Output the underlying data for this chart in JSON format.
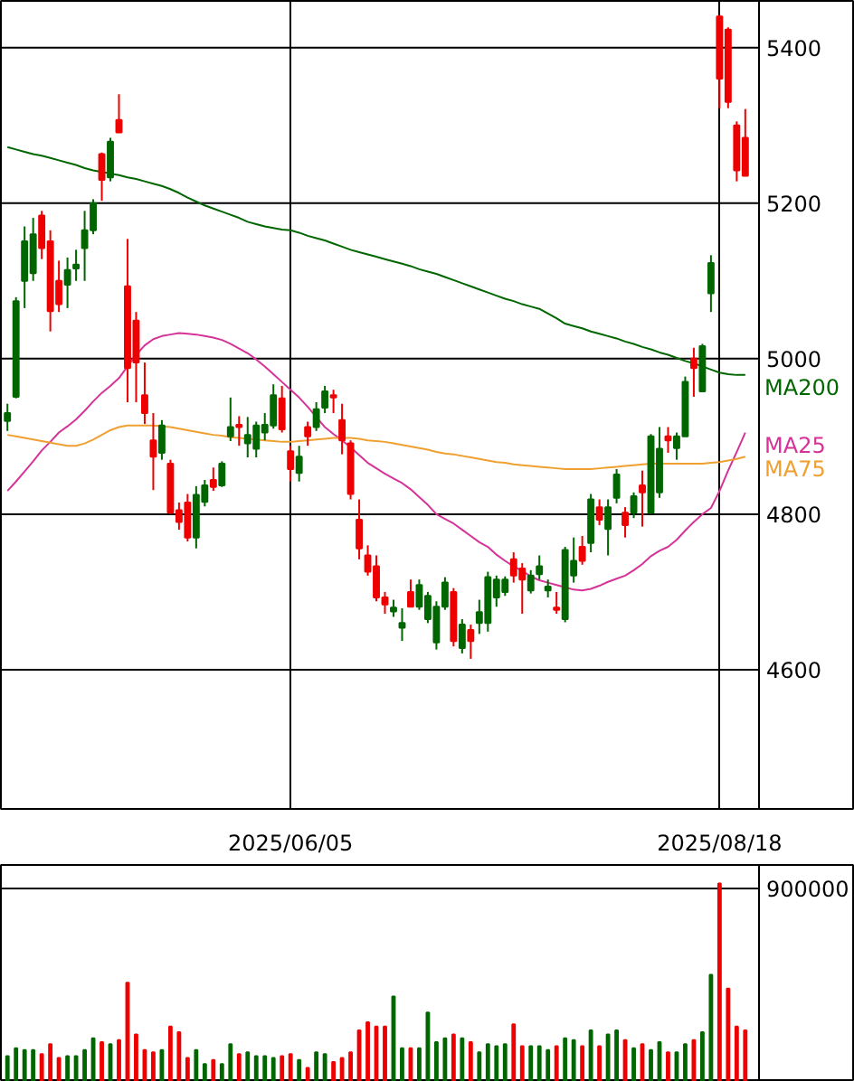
{
  "chart_data": [
    {
      "type": "candlestick",
      "categories": [
        null,
        null,
        null,
        null,
        null,
        null,
        null,
        null,
        null,
        null,
        null,
        null,
        null,
        null,
        null,
        null,
        null,
        null,
        null,
        null,
        null,
        null,
        null,
        null,
        null,
        null,
        null,
        null,
        null,
        null,
        null,
        null,
        null,
        "2025/06/05",
        null,
        null,
        null,
        null,
        null,
        null,
        null,
        null,
        null,
        null,
        null,
        null,
        null,
        null,
        null,
        null,
        null,
        null,
        null,
        null,
        null,
        null,
        null,
        null,
        null,
        null,
        null,
        null,
        null,
        null,
        null,
        null,
        null,
        null,
        null,
        null,
        null,
        null,
        null,
        null,
        null,
        null,
        null,
        null,
        null,
        null,
        null,
        null,
        null,
        "2025/08/18",
        null,
        null,
        null
      ],
      "ohlc": [
        [
          4920,
          4942,
          4907,
          4930
        ],
        [
          4951,
          5079,
          4949,
          5074
        ],
        [
          5100,
          5170,
          5065,
          5151
        ],
        [
          5110,
          5181,
          5100,
          5160
        ],
        [
          5184,
          5190,
          5128,
          5142
        ],
        [
          5151,
          5165,
          5035,
          5061
        ],
        [
          5100,
          5126,
          5060,
          5070
        ],
        [
          5095,
          5130,
          5065,
          5114
        ],
        [
          5116,
          5140,
          5100,
          5121
        ],
        [
          5142,
          5190,
          5100,
          5165
        ],
        [
          5165,
          5205,
          5160,
          5200
        ],
        [
          5263,
          5265,
          5203,
          5230
        ],
        [
          5233,
          5284,
          5228,
          5279
        ],
        [
          5307,
          5340,
          5291,
          5291
        ],
        [
          5093,
          5154,
          4944,
          4988
        ],
        [
          5049,
          5060,
          4944,
          4995
        ],
        [
          4953,
          4995,
          4916,
          4930
        ],
        [
          4895,
          4930,
          4831,
          4874
        ],
        [
          4879,
          4921,
          4870,
          4914
        ],
        [
          4865,
          4870,
          4800,
          4802
        ],
        [
          4805,
          4815,
          4780,
          4790
        ],
        [
          4815,
          4826,
          4765,
          4770
        ],
        [
          4770,
          4836,
          4756,
          4825
        ],
        [
          4816,
          4844,
          4810,
          4837
        ],
        [
          4844,
          4860,
          4830,
          4835
        ],
        [
          4837,
          4868,
          4835,
          4865
        ],
        [
          4900,
          4950,
          4894,
          4912
        ],
        [
          4915,
          4926,
          4888,
          4912
        ],
        [
          4891,
          4925,
          4873,
          4902
        ],
        [
          4884,
          4919,
          4873,
          4914
        ],
        [
          4905,
          4930,
          4895,
          4915
        ],
        [
          4914,
          4967,
          4910,
          4953
        ],
        [
          4949,
          4965,
          4905,
          4909
        ],
        [
          4881,
          4888,
          4842,
          4858
        ],
        [
          4853,
          4888,
          4842,
          4874
        ],
        [
          4912,
          4919,
          4888,
          4900
        ],
        [
          4912,
          4944,
          4907,
          4935
        ],
        [
          4937,
          4965,
          4930,
          4958
        ],
        [
          4953,
          4960,
          4930,
          4950
        ],
        [
          4921,
          4942,
          4877,
          4895
        ],
        [
          4891,
          4895,
          4819,
          4826
        ],
        [
          4793,
          4819,
          4742,
          4756
        ],
        [
          4747,
          4760,
          4721,
          4726
        ],
        [
          4733,
          4747,
          4688,
          4693
        ],
        [
          4693,
          4700,
          4672,
          4684
        ],
        [
          4675,
          4690,
          4668,
          4680
        ],
        [
          4654,
          4679,
          4637,
          4660
        ],
        [
          4700,
          4716,
          4681,
          4681
        ],
        [
          4681,
          4716,
          4677,
          4709
        ],
        [
          4665,
          4700,
          4660,
          4695
        ],
        [
          4635,
          4688,
          4626,
          4681
        ],
        [
          4681,
          4719,
          4677,
          4712
        ],
        [
          4700,
          4705,
          4630,
          4637
        ],
        [
          4628,
          4665,
          4621,
          4658
        ],
        [
          4651,
          4658,
          4614,
          4637
        ],
        [
          4660,
          4690,
          4646,
          4674
        ],
        [
          4660,
          4726,
          4649,
          4719
        ],
        [
          4693,
          4721,
          4681,
          4716
        ],
        [
          4700,
          4720,
          4695,
          4716
        ],
        [
          4742,
          4751,
          4712,
          4721
        ],
        [
          4730,
          4737,
          4672,
          4716
        ],
        [
          4702,
          4728,
          4698,
          4721
        ],
        [
          4723,
          4747,
          4716,
          4733
        ],
        [
          4702,
          4716,
          4693,
          4707
        ],
        [
          4680,
          4700,
          4672,
          4677
        ],
        [
          4665,
          4758,
          4661,
          4754
        ],
        [
          4721,
          4770,
          4712,
          4740
        ],
        [
          4758,
          4772,
          4735,
          4740
        ],
        [
          4763,
          4826,
          4751,
          4819
        ],
        [
          4809,
          4819,
          4786,
          4793
        ],
        [
          4781,
          4819,
          4747,
          4809
        ],
        [
          4821,
          4858,
          4814,
          4851
        ],
        [
          4802,
          4809,
          4770,
          4786
        ],
        [
          4802,
          4828,
          4795,
          4823
        ],
        [
          4837,
          4856,
          4784,
          4828
        ],
        [
          4802,
          4903,
          4800,
          4900
        ],
        [
          4828,
          4912,
          4821,
          4884
        ],
        [
          4900,
          4912,
          4879,
          4895
        ],
        [
          4885,
          4905,
          4870,
          4900
        ],
        [
          4900,
          4977,
          4900,
          4970
        ],
        [
          5000,
          5014,
          4951,
          4988
        ],
        [
          4958,
          5019,
          4958,
          5016
        ],
        [
          5084,
          5133,
          5060,
          5123
        ],
        [
          5440,
          5442,
          5322,
          5360
        ],
        [
          5423,
          5426,
          5322,
          5330
        ],
        [
          5300,
          5305,
          5228,
          5242
        ],
        [
          5284,
          5321,
          5235,
          5235
        ]
      ],
      "colors": [
        "#006600",
        "#006600",
        "#006600",
        "#006600",
        "#ee0000",
        "#ee0000",
        "#ee0000",
        "#006600",
        "#006600",
        "#006600",
        "#006600",
        "#ee0000",
        "#006600",
        "#ee0000",
        "#ee0000",
        "#ee0000",
        "#ee0000",
        "#ee0000",
        "#006600",
        "#ee0000",
        "#ee0000",
        "#ee0000",
        "#006600",
        "#006600",
        "#ee0000",
        "#006600",
        "#006600",
        "#ee0000",
        "#006600",
        "#006600",
        "#006600",
        "#006600",
        "#ee0000",
        "#ee0000",
        "#006600",
        "#ee0000",
        "#006600",
        "#006600",
        "#ee0000",
        "#ee0000",
        "#ee0000",
        "#ee0000",
        "#ee0000",
        "#ee0000",
        "#ee0000",
        "#006600",
        "#006600",
        "#ee0000",
        "#006600",
        "#006600",
        "#006600",
        "#006600",
        "#ee0000",
        "#006600",
        "#ee0000",
        "#006600",
        "#006600",
        "#006600",
        "#006600",
        "#ee0000",
        "#ee0000",
        "#006600",
        "#006600",
        "#006600",
        "#ee0000",
        "#006600",
        "#006600",
        "#ee0000",
        "#006600",
        "#ee0000",
        "#006600",
        "#006600",
        "#ee0000",
        "#006600",
        "#ee0000",
        "#006600",
        "#006600",
        "#ee0000",
        "#006600",
        "#006600",
        "#ee0000",
        "#006600",
        "#006600",
        "#ee0000",
        "#ee0000",
        "#ee0000",
        "#ee0000"
      ],
      "series": [
        {
          "name": "MA200",
          "type": "line",
          "color": "#006600",
          "values": [
            5272,
            5269,
            5266,
            5263,
            5261,
            5258,
            5255,
            5252,
            5249,
            5245,
            5242,
            5240,
            5238,
            5236,
            5233,
            5231,
            5228,
            5225,
            5222,
            5218,
            5213,
            5207,
            5202,
            5197,
            5193,
            5189,
            5185,
            5181,
            5176,
            5173,
            5170,
            5168,
            5166,
            5165,
            5162,
            5158,
            5155,
            5152,
            5148,
            5144,
            5140,
            5137,
            5134,
            5131,
            5128,
            5125,
            5122,
            5119,
            5115,
            5112,
            5109,
            5105,
            5101,
            5097,
            5093,
            5089,
            5085,
            5081,
            5077,
            5074,
            5070,
            5067,
            5064,
            5058,
            5052,
            5045,
            5042,
            5039,
            5035,
            5032,
            5029,
            5026,
            5022,
            5019,
            5015,
            5012,
            5008,
            5005,
            5001,
            4997,
            4994,
            4990,
            4986,
            4982,
            4980,
            4979,
            4979
          ]
        },
        {
          "name": "MA25",
          "type": "line",
          "color": "#d63399",
          "values": [
            4830,
            4842,
            4855,
            4868,
            4882,
            4893,
            4905,
            4913,
            4922,
            4933,
            4945,
            4956,
            4965,
            4975,
            4990,
            5005,
            5017,
            5025,
            5029,
            5031,
            5033,
            5032,
            5031,
            5029,
            5027,
            5024,
            5019,
            5013,
            5007,
            4999,
            4990,
            4980,
            4970,
            4960,
            4950,
            4938,
            4925,
            4912,
            4903,
            4895,
            4886,
            4876,
            4866,
            4859,
            4852,
            4846,
            4840,
            4832,
            4822,
            4812,
            4800,
            4794,
            4788,
            4780,
            4772,
            4764,
            4758,
            4748,
            4740,
            4733,
            4727,
            4720,
            4715,
            4712,
            4709,
            4706,
            4703,
            4702,
            4704,
            4708,
            4713,
            4717,
            4721,
            4728,
            4736,
            4746,
            4753,
            4758,
            4767,
            4779,
            4790,
            4800,
            4808,
            4830,
            4856,
            4880,
            4905
          ]
        },
        {
          "name": "MA75",
          "type": "line",
          "color": "#f0a030",
          "values": [
            4902,
            4900,
            4898,
            4896,
            4894,
            4892,
            4890,
            4888,
            4888,
            4891,
            4896,
            4902,
            4908,
            4912,
            4914,
            4914,
            4914,
            4914,
            4913,
            4912,
            4910,
            4908,
            4906,
            4904,
            4902,
            4901,
            4899,
            4898,
            4897,
            4896,
            4895,
            4894,
            4893,
            4893,
            4894,
            4895,
            4896,
            4897,
            4898,
            4898,
            4898,
            4897,
            4895,
            4894,
            4893,
            4891,
            4889,
            4887,
            4885,
            4883,
            4880,
            4878,
            4877,
            4875,
            4873,
            4871,
            4869,
            4867,
            4866,
            4864,
            4863,
            4862,
            4861,
            4860,
            4859,
            4858,
            4858,
            4858,
            4858,
            4859,
            4860,
            4861,
            4862,
            4863,
            4864,
            4865,
            4865,
            4865,
            4865,
            4865,
            4865,
            4865,
            4866,
            4867,
            4869,
            4871,
            4874
          ]
        }
      ],
      "ylim": [
        4421,
        5460
      ],
      "yticks": [
        4600,
        4800,
        5000,
        5200,
        5400
      ],
      "grid": true
    },
    {
      "type": "bar",
      "categories": [
        null,
        null,
        null,
        null,
        null,
        null,
        null,
        null,
        null,
        null,
        null,
        null,
        null,
        null,
        null,
        null,
        null,
        null,
        null,
        null,
        null,
        null,
        null,
        null,
        null,
        null,
        null,
        null,
        null,
        null,
        null,
        null,
        null,
        null,
        null,
        null,
        null,
        null,
        null,
        null,
        null,
        null,
        null,
        null,
        null,
        null,
        null,
        null,
        null,
        null,
        null,
        null,
        null,
        null,
        null,
        null,
        null,
        null,
        null,
        null,
        null,
        null,
        null,
        null,
        null,
        null,
        null,
        null,
        null,
        null,
        null,
        null,
        null,
        null,
        null,
        null,
        null,
        null,
        null,
        null,
        null,
        null,
        null,
        null,
        null,
        null,
        null
      ],
      "values": [
        120000,
        157000,
        148000,
        148000,
        129000,
        175000,
        111000,
        120000,
        120000,
        148000,
        203000,
        185000,
        175000,
        194000,
        461000,
        221000,
        148000,
        138000,
        148000,
        258000,
        231000,
        111000,
        148000,
        83000,
        102000,
        83000,
        175000,
        129000,
        138000,
        120000,
        120000,
        111000,
        120000,
        129000,
        102000,
        65000,
        138000,
        129000,
        92000,
        111000,
        138000,
        240000,
        277000,
        258000,
        258000,
        397000,
        157000,
        157000,
        157000,
        323000,
        185000,
        203000,
        221000,
        203000,
        185000,
        138000,
        175000,
        166000,
        175000,
        268000,
        166000,
        166000,
        166000,
        148000,
        166000,
        203000,
        194000,
        166000,
        240000,
        166000,
        221000,
        240000,
        194000,
        157000,
        175000,
        148000,
        185000,
        138000,
        138000,
        175000,
        194000,
        231000,
        498000,
        923000,
        434000,
        258000,
        240000
      ],
      "colors": [
        "#006600",
        "#006600",
        "#006600",
        "#006600",
        "#ee0000",
        "#ee0000",
        "#ee0000",
        "#006600",
        "#006600",
        "#006600",
        "#006600",
        "#ee0000",
        "#006600",
        "#ee0000",
        "#ee0000",
        "#ee0000",
        "#ee0000",
        "#ee0000",
        "#006600",
        "#ee0000",
        "#ee0000",
        "#ee0000",
        "#006600",
        "#006600",
        "#ee0000",
        "#006600",
        "#006600",
        "#ee0000",
        "#006600",
        "#006600",
        "#006600",
        "#006600",
        "#ee0000",
        "#ee0000",
        "#006600",
        "#ee0000",
        "#006600",
        "#006600",
        "#ee0000",
        "#ee0000",
        "#ee0000",
        "#ee0000",
        "#ee0000",
        "#ee0000",
        "#ee0000",
        "#006600",
        "#006600",
        "#ee0000",
        "#006600",
        "#006600",
        "#006600",
        "#006600",
        "#ee0000",
        "#006600",
        "#ee0000",
        "#006600",
        "#006600",
        "#006600",
        "#006600",
        "#ee0000",
        "#ee0000",
        "#006600",
        "#006600",
        "#006600",
        "#ee0000",
        "#006600",
        "#006600",
        "#ee0000",
        "#006600",
        "#ee0000",
        "#006600",
        "#006600",
        "#ee0000",
        "#006600",
        "#ee0000",
        "#006600",
        "#006600",
        "#ee0000",
        "#006600",
        "#006600",
        "#ee0000",
        "#006600",
        "#006600",
        "#ee0000",
        "#ee0000",
        "#ee0000",
        "#ee0000"
      ],
      "ylim": [
        0,
        1009000
      ],
      "yticks": [
        900000
      ],
      "grid": "y"
    }
  ]
}
